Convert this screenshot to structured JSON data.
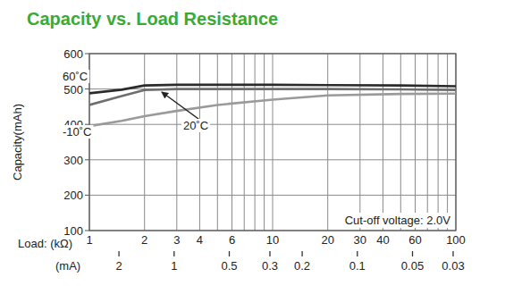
{
  "chart_data": {
    "type": "line",
    "title": "Capacity vs. Load Resistance",
    "y_label": "Capacity(mAh)",
    "x_label": "Load: (kΩ)",
    "x2_label": "(mA)",
    "annotation": "Cut-off voltage: 2.0V",
    "log": "x",
    "grid": true,
    "x": [
      1,
      1.5,
      2,
      3,
      5,
      10,
      20,
      50,
      100
    ],
    "series": [
      {
        "name": "60˚C",
        "color": "#2b2b2b",
        "values": [
          488,
          498,
          510,
          512,
          512,
          512,
          511,
          510,
          508
        ]
      },
      {
        "name": "20˚C",
        "color": "#6e6e6e",
        "values": [
          455,
          480,
          497,
          500,
          500,
          500,
          500,
          499,
          497
        ]
      },
      {
        "name": "-10˚C",
        "color": "#9a9a9a",
        "values": [
          395,
          410,
          423,
          438,
          455,
          470,
          482,
          486,
          487
        ]
      }
    ],
    "xlim": [
      1,
      100
    ],
    "xticks": [
      1,
      2,
      3,
      4,
      6,
      10,
      20,
      30,
      40,
      60,
      100
    ],
    "xminor_ticks": [
      5,
      7,
      8,
      9,
      50,
      70,
      80,
      90
    ],
    "x2lim": [
      2.9,
      0.029
    ],
    "x2ticks": [
      2,
      1,
      0.5,
      0.3,
      0.2,
      0.1,
      0.05,
      0.03
    ],
    "ylim": [
      100,
      600
    ],
    "yticks": [
      100,
      200,
      300,
      400,
      500,
      600
    ]
  }
}
